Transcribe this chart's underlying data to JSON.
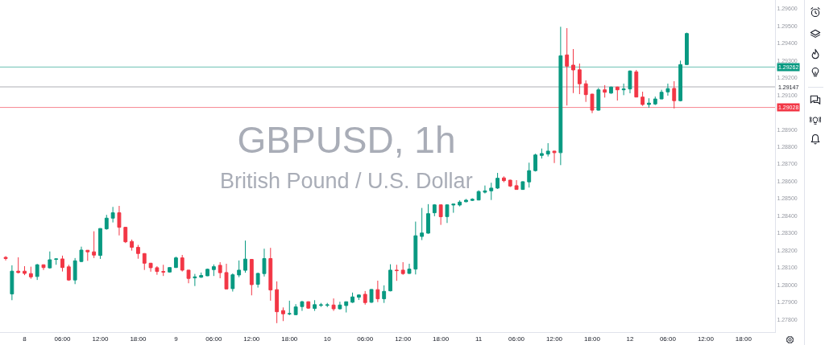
{
  "chart_data": {
    "type": "candlestick",
    "title": "GBPUSD, 1h",
    "subtitle": "British Pound / U.S. Dollar",
    "x": [
      "--07-07T21:00",
      "--07-07T22:00",
      "--07-07T23:00",
      "--07-08T00:00",
      "--07-08T01:00",
      "--07-08T02:00",
      "--07-08T03:00",
      "--07-08T04:00",
      "--07-08T05:00",
      "--07-08T06:00",
      "--07-08T07:00",
      "--07-08T08:00",
      "--07-08T09:00",
      "--07-08T10:00",
      "--07-08T11:00",
      "--07-08T12:00",
      "--07-08T13:00",
      "--07-08T14:00",
      "--07-08T15:00",
      "--07-08T16:00",
      "--07-08T17:00",
      "--07-08T18:00",
      "--07-08T19:00",
      "--07-08T20:00",
      "--07-08T21:00",
      "--07-08T22:00",
      "--07-08T23:00",
      "--07-09T00:00",
      "--07-09T01:00",
      "--07-09T02:00",
      "--07-09T03:00",
      "--07-09T04:00",
      "--07-09T05:00",
      "--07-09T06:00",
      "--07-09T07:00",
      "--07-09T08:00",
      "--07-09T09:00",
      "--07-09T10:00",
      "--07-09T11:00",
      "--07-09T12:00",
      "--07-09T13:00",
      "--07-09T14:00",
      "--07-09T15:00",
      "--07-09T16:00",
      "--07-09T17:00",
      "--07-09T18:00",
      "--07-09T19:00",
      "--07-09T20:00",
      "--07-09T21:00",
      "--07-09T22:00",
      "--07-09T23:00",
      "--07-10T00:00",
      "--07-10T01:00",
      "--07-10T02:00",
      "--07-10T03:00",
      "--07-10T04:00",
      "--07-10T05:00",
      "--07-10T06:00",
      "--07-10T07:00",
      "--07-10T08:00",
      "--07-10T09:00",
      "--07-10T10:00",
      "--07-10T11:00",
      "--07-10T12:00",
      "--07-10T13:00",
      "--07-10T14:00",
      "--07-10T15:00",
      "--07-10T16:00",
      "--07-10T17:00",
      "--07-10T18:00",
      "--07-10T19:00",
      "--07-10T20:00",
      "--07-10T21:00",
      "--07-10T22:00",
      "--07-10T23:00",
      "--07-11T00:00",
      "--07-11T01:00",
      "--07-11T02:00",
      "--07-11T03:00",
      "--07-11T04:00",
      "--07-11T05:00",
      "--07-11T06:00",
      "--07-11T07:00",
      "--07-11T08:00",
      "--07-11T09:00",
      "--07-11T10:00",
      "--07-11T11:00",
      "--07-11T12:00",
      "--07-11T13:00",
      "--07-11T14:00",
      "--07-11T15:00",
      "--07-11T16:00",
      "--07-11T17:00",
      "--07-11T18:00",
      "--07-11T19:00",
      "--07-11T20:00",
      "--07-11T21:00",
      "--07-11T22:00",
      "--07-11T23:00",
      "--07-12T00:00",
      "--07-12T01:00",
      "--07-12T02:00",
      "--07-12T03:00",
      "--07-12T04:00",
      "--07-12T05:00",
      "--07-12T06:00",
      "--07-12T07:00",
      "--07-12T08:00",
      "--07-12T09:00"
    ],
    "ohlc": [
      [
        1.2816,
        1.28167,
        1.28142,
        1.28153
      ],
      [
        1.27948,
        1.28114,
        1.27912,
        1.2808
      ],
      [
        1.2808,
        1.2816,
        1.28067,
        1.28072
      ],
      [
        1.2808,
        1.28109,
        1.28057,
        1.28067
      ],
      [
        1.28066,
        1.28106,
        1.28036,
        1.28047
      ],
      [
        1.28049,
        1.28122,
        1.28029,
        1.28117
      ],
      [
        1.28117,
        1.28119,
        1.28087,
        1.28101
      ],
      [
        1.28099,
        1.28194,
        1.28095,
        1.28146
      ],
      [
        1.28148,
        1.28152,
        1.28117,
        1.28151
      ],
      [
        1.28151,
        1.2817,
        1.28078,
        1.28101
      ],
      [
        1.28105,
        1.28117,
        1.28024,
        1.28029
      ],
      [
        1.28029,
        1.28156,
        1.28005,
        1.2814
      ],
      [
        1.28136,
        1.28222,
        1.28132,
        1.28202
      ],
      [
        1.28201,
        1.28202,
        1.2814,
        1.28192
      ],
      [
        1.28192,
        1.28311,
        1.28156,
        1.28173
      ],
      [
        1.28171,
        1.28328,
        1.28151,
        1.28327
      ],
      [
        1.28325,
        1.28406,
        1.2832,
        1.28387
      ],
      [
        1.28387,
        1.28452,
        1.28362,
        1.28418
      ],
      [
        1.28418,
        1.28458,
        1.28287,
        1.28334
      ],
      [
        1.28334,
        1.28336,
        1.28243,
        1.2825
      ],
      [
        1.28252,
        1.28263,
        1.28199,
        1.28218
      ],
      [
        1.28218,
        1.28232,
        1.28152,
        1.28182
      ],
      [
        1.28182,
        1.28184,
        1.28087,
        1.28126
      ],
      [
        1.28126,
        1.28128,
        1.28077,
        1.281
      ],
      [
        1.281,
        1.28109,
        1.28059,
        1.28078
      ],
      [
        1.28078,
        1.28117,
        1.28052,
        1.28075
      ],
      [
        1.28075,
        1.28102,
        1.28072,
        1.28101
      ],
      [
        1.28101,
        1.28164,
        1.28099,
        1.28157
      ],
      [
        1.28157,
        1.28174,
        1.28078,
        1.28086
      ],
      [
        1.28086,
        1.28088,
        1.2801,
        1.28038
      ],
      [
        1.28041,
        1.28064,
        1.27994,
        1.28047
      ],
      [
        1.28045,
        1.28072,
        1.28041,
        1.28055
      ],
      [
        1.28053,
        1.28095,
        1.28052,
        1.28091
      ],
      [
        1.28089,
        1.28119,
        1.28052,
        1.28106
      ],
      [
        1.28114,
        1.28132,
        1.28039,
        1.28071
      ],
      [
        1.28072,
        1.28123,
        1.27974,
        1.27977
      ],
      [
        1.27979,
        1.28067,
        1.27962,
        1.28059
      ],
      [
        1.28058,
        1.28142,
        1.28045,
        1.28086
      ],
      [
        1.28085,
        1.28257,
        1.28071,
        1.2815
      ],
      [
        1.28148,
        1.2815,
        1.2794,
        1.28002
      ],
      [
        1.28004,
        1.28071,
        1.27985,
        1.28067
      ],
      [
        1.28066,
        1.2821,
        1.28049,
        1.28153
      ],
      [
        1.28153,
        1.28215,
        1.27909,
        1.27971
      ],
      [
        1.27973,
        1.28021,
        1.27779,
        1.27845
      ],
      [
        1.27852,
        1.2787,
        1.27791,
        1.27833
      ],
      [
        1.27833,
        1.27909,
        1.27825,
        1.27834
      ],
      [
        1.27828,
        1.27889,
        1.27825,
        1.27873
      ],
      [
        1.27875,
        1.27908,
        1.2785,
        1.27903
      ],
      [
        1.27903,
        1.27905,
        1.27862,
        1.27866
      ],
      [
        1.27864,
        1.27912,
        1.2785,
        1.27886
      ],
      [
        1.27882,
        1.27896,
        1.27873,
        1.27885
      ],
      [
        1.27882,
        1.27896,
        1.27872,
        1.27885
      ],
      [
        1.27884,
        1.27922,
        1.2785,
        1.27862
      ],
      [
        1.27862,
        1.27903,
        1.27858,
        1.27884
      ],
      [
        1.27881,
        1.27904,
        1.27841,
        1.27903
      ],
      [
        1.279,
        1.27956,
        1.27896,
        1.27931
      ],
      [
        1.27929,
        1.27946,
        1.27913,
        1.27942
      ],
      [
        1.27946,
        1.27965,
        1.27886,
        1.27898
      ],
      [
        1.279,
        1.27976,
        1.27896,
        1.27974
      ],
      [
        1.27973,
        1.28025,
        1.27901,
        1.2792
      ],
      [
        1.2792,
        1.27998,
        1.27896,
        1.27963
      ],
      [
        1.27966,
        1.2812,
        1.27963,
        1.28086
      ],
      [
        1.28086,
        1.28117,
        1.28024,
        1.28083
      ],
      [
        1.28086,
        1.28132,
        1.28059,
        1.28066
      ],
      [
        1.28067,
        1.28123,
        1.28064,
        1.28092
      ],
      [
        1.28092,
        1.28367,
        1.28061,
        1.28285
      ],
      [
        1.28281,
        1.28446,
        1.2826,
        1.28301
      ],
      [
        1.283,
        1.28468,
        1.28297,
        1.28413
      ],
      [
        1.28418,
        1.28468,
        1.28398,
        1.28464
      ],
      [
        1.28464,
        1.28466,
        1.28348,
        1.28395
      ],
      [
        1.28396,
        1.28466,
        1.28359,
        1.28464
      ],
      [
        1.28463,
        1.28469,
        1.28418,
        1.28468
      ],
      [
        1.28463,
        1.2849,
        1.28455,
        1.2848
      ],
      [
        1.28482,
        1.28498,
        1.28479,
        1.28491
      ],
      [
        1.2849,
        1.28502,
        1.28486,
        1.28496
      ],
      [
        1.28492,
        1.28548,
        1.2849,
        1.28541
      ],
      [
        1.28537,
        1.28576,
        1.2853,
        1.28545
      ],
      [
        1.28545,
        1.28592,
        1.28492,
        1.28561
      ],
      [
        1.28561,
        1.28649,
        1.28556,
        1.28618
      ],
      [
        1.2862,
        1.28629,
        1.28595,
        1.28604
      ],
      [
        1.28607,
        1.28609,
        1.28567,
        1.28573
      ],
      [
        1.28575,
        1.28607,
        1.28552,
        1.28553
      ],
      [
        1.28553,
        1.286,
        1.28551,
        1.28598
      ],
      [
        1.28597,
        1.28708,
        1.28564,
        1.28662
      ],
      [
        1.28662,
        1.2876,
        1.28657,
        1.28753
      ],
      [
        1.2875,
        1.2879,
        1.28732,
        1.28761
      ],
      [
        1.28758,
        1.28821,
        1.28744,
        1.28775
      ],
      [
        1.28775,
        1.28777,
        1.28706,
        1.28766
      ],
      [
        1.28766,
        1.29495,
        1.28694,
        1.29327
      ],
      [
        1.29332,
        1.29487,
        1.29039,
        1.29267
      ],
      [
        1.29273,
        1.29366,
        1.29111,
        1.29245
      ],
      [
        1.29246,
        1.29282,
        1.29105,
        1.29165
      ],
      [
        1.29165,
        1.29185,
        1.2906,
        1.29102
      ],
      [
        1.29105,
        1.29107,
        1.28995,
        1.29012
      ],
      [
        1.29012,
        1.29141,
        1.2901,
        1.2913
      ],
      [
        1.2913,
        1.29157,
        1.29085,
        1.29116
      ],
      [
        1.29111,
        1.29148,
        1.29107,
        1.29146
      ],
      [
        1.29146,
        1.29148,
        1.29068,
        1.2913
      ],
      [
        1.2913,
        1.29166,
        1.29099,
        1.29135
      ],
      [
        1.29135,
        1.29242,
        1.2911,
        1.29239
      ],
      [
        1.29234,
        1.29245,
        1.29087,
        1.29088
      ],
      [
        1.29088,
        1.29119,
        1.29037,
        1.29045
      ],
      [
        1.29045,
        1.29081,
        1.29026,
        1.29053
      ],
      [
        1.29048,
        1.29091,
        1.29042,
        1.29077
      ],
      [
        1.29077,
        1.2913,
        1.29076,
        1.29116
      ],
      [
        1.29118,
        1.29166,
        1.29096,
        1.29137
      ],
      [
        1.29138,
        1.2918,
        1.29022,
        1.29067
      ],
      [
        1.29067,
        1.29299,
        1.29063,
        1.29276
      ],
      [
        1.29276,
        1.29461,
        1.29275,
        1.29456
      ]
    ],
    "colors": [
      "#f23645",
      "#089981",
      "#f23645",
      "#f23645",
      "#f23645",
      "#089981",
      "#f23645",
      "#089981",
      "#089981",
      "#f23645",
      "#f23645",
      "#089981",
      "#089981",
      "#f23645",
      "#f23645",
      "#089981",
      "#089981",
      "#089981",
      "#f23645",
      "#f23645",
      "#f23645",
      "#f23645",
      "#f23645",
      "#f23645",
      "#f23645",
      "#f23645",
      "#089981",
      "#089981",
      "#f23645",
      "#f23645",
      "#089981",
      "#089981",
      "#089981",
      "#089981",
      "#f23645",
      "#f23645",
      "#089981",
      "#089981",
      "#089981",
      "#f23645",
      "#089981",
      "#089981",
      "#f23645",
      "#f23645",
      "#f23645",
      "#089981",
      "#089981",
      "#089981",
      "#f23645",
      "#089981",
      "#089981",
      "#089981",
      "#f23645",
      "#089981",
      "#089981",
      "#089981",
      "#089981",
      "#f23645",
      "#089981",
      "#f23645",
      "#089981",
      "#089981",
      "#f23645",
      "#f23645",
      "#089981",
      "#089981",
      "#089981",
      "#089981",
      "#089981",
      "#f23645",
      "#089981",
      "#089981",
      "#089981",
      "#089981",
      "#089981",
      "#089981",
      "#089981",
      "#089981",
      "#089981",
      "#f23645",
      "#f23645",
      "#f23645",
      "#089981",
      "#089981",
      "#089981",
      "#089981",
      "#089981",
      "#f23645",
      "#089981",
      "#f23645",
      "#f23645",
      "#f23645",
      "#f23645",
      "#f23645",
      "#089981",
      "#f23645",
      "#089981",
      "#f23645",
      "#089981",
      "#089981",
      "#f23645",
      "#f23645",
      "#089981",
      "#089981",
      "#089981",
      "#089981",
      "#f23645",
      "#089981",
      "#089981"
    ],
    "xlim": [
      "--07-07T20:06",
      "--07-12T23:00"
    ],
    "ylim": [
      1.27727,
      1.2965
    ],
    "xticks": [
      {
        "value": "--07-08",
        "label": "8"
      },
      {
        "value": "--07-08T06:00",
        "label": "06:00"
      },
      {
        "value": "--07-08T12:00",
        "label": "12:00"
      },
      {
        "value": "--07-08T18:00",
        "label": "18:00"
      },
      {
        "value": "--07-09",
        "label": "9"
      },
      {
        "value": "--07-09T06:00",
        "label": "06:00"
      },
      {
        "value": "--07-09T12:00",
        "label": "12:00"
      },
      {
        "value": "--07-09T18:00",
        "label": "18:00"
      },
      {
        "value": "--07-10",
        "label": "10"
      },
      {
        "value": "--07-10T06:00",
        "label": "06:00"
      },
      {
        "value": "--07-10T12:00",
        "label": "12:00"
      },
      {
        "value": "--07-10T18:00",
        "label": "18:00"
      },
      {
        "value": "--07-11",
        "label": "11"
      },
      {
        "value": "--07-11T06:00",
        "label": "06:00"
      },
      {
        "value": "--07-11T12:00",
        "label": "12:00"
      },
      {
        "value": "--07-11T18:00",
        "label": "18:00"
      },
      {
        "value": "--07-12",
        "label": "12"
      },
      {
        "value": "--07-12T06:00",
        "label": "06:00"
      },
      {
        "value": "--07-12T12:00",
        "label": "12:00"
      },
      {
        "value": "--07-12T18:00",
        "label": "18:00"
      }
    ],
    "yticks": [
      {
        "value": 1.278,
        "label": "1.27800"
      },
      {
        "value": 1.279,
        "label": "1.27900"
      },
      {
        "value": 1.28,
        "label": "1.28000"
      },
      {
        "value": 1.281,
        "label": "1.28100"
      },
      {
        "value": 1.282,
        "label": "1.28200"
      },
      {
        "value": 1.283,
        "label": "1.28300"
      },
      {
        "value": 1.284,
        "label": "1.28400"
      },
      {
        "value": 1.285,
        "label": "1.28500"
      },
      {
        "value": 1.286,
        "label": "1.28600"
      },
      {
        "value": 1.287,
        "label": "1.28700"
      },
      {
        "value": 1.288,
        "label": "1.28800"
      },
      {
        "value": 1.289,
        "label": "1.28900"
      },
      {
        "value": 1.291,
        "label": "1.29100"
      },
      {
        "value": 1.292,
        "label": "1.29200"
      },
      {
        "value": 1.293,
        "label": "1.29300"
      },
      {
        "value": 1.294,
        "label": "1.29400"
      },
      {
        "value": 1.295,
        "label": "1.29500"
      },
      {
        "value": 1.296,
        "label": "1.29600"
      }
    ],
    "ref_lines": [
      {
        "axis": "y",
        "value": 1.29262,
        "label": "1.29262",
        "color": "#089981"
      },
      {
        "axis": "y",
        "value": 1.29147,
        "label": "1.29147"
      },
      {
        "axis": "y",
        "value": 1.29028,
        "label": "1.29028",
        "color": "#f23645"
      }
    ]
  }
}
